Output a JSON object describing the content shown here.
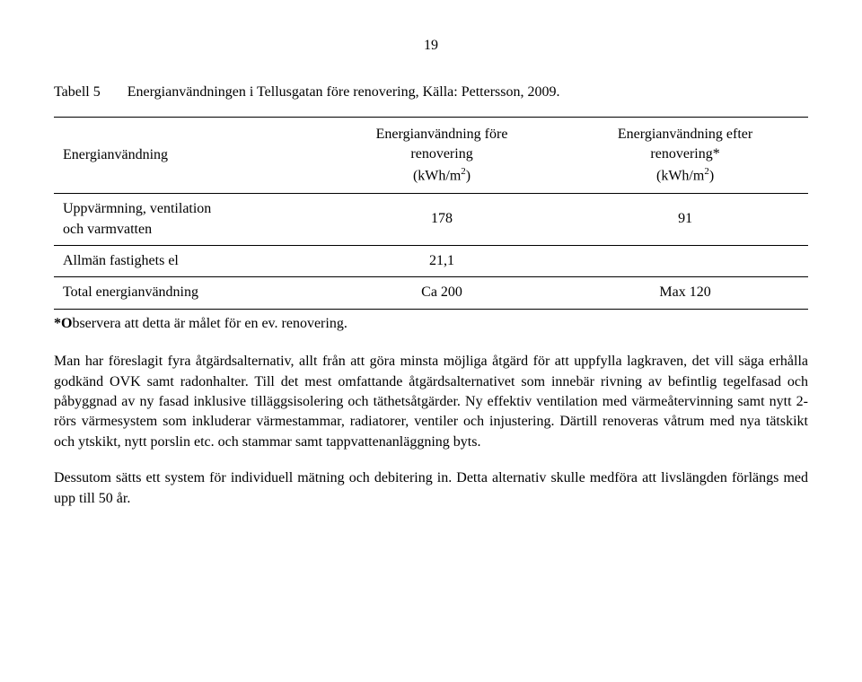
{
  "page_number": "19",
  "caption": {
    "label": "Tabell 5",
    "text": "Energianvändningen i Tellusgatan före renovering, Källa: Pettersson, 2009."
  },
  "table": {
    "columns": [
      {
        "header": "Energianvändning",
        "align": "left"
      },
      {
        "header_line1": "Energianvändning före",
        "header_line2": "renovering",
        "header_line3_prefix": "(kWh/m",
        "header_line3_sup": "2",
        "header_line3_suffix": ")",
        "align": "center"
      },
      {
        "header_line1": "Energianvändning efter",
        "header_line2": "renovering*",
        "header_line3_prefix": "(kWh/m",
        "header_line3_sup": "2",
        "header_line3_suffix": ")",
        "align": "center"
      }
    ],
    "rows": [
      {
        "label_line1": "Uppvärmning, ventilation",
        "label_line2": "och varmvatten",
        "col1": "178",
        "col2": "91"
      },
      {
        "label_line1": "Allmän fastighets el",
        "label_line2": "",
        "col1": "21,1",
        "col2": ""
      },
      {
        "label_line1": "Total energianvändning",
        "label_line2": "",
        "col1": "Ca 200",
        "col2": "Max 120"
      }
    ]
  },
  "footnote": {
    "bold_prefix": "*O",
    "rest": "bservera att detta är målet för en ev. renovering."
  },
  "paragraphs": [
    "Man har föreslagit fyra åtgärdsalternativ, allt från att göra minsta möjliga åtgärd för att uppfylla lagkraven, det vill säga erhålla godkänd OVK samt radonhalter. Till det mest omfattande åtgärdsalternativet som innebär rivning av befintlig tegelfasad och påbyggnad av ny fasad inklusive tilläggsisolering och täthetsåtgärder. Ny effektiv ventilation med värmeåtervinning samt nytt 2-rörs värmesystem som inkluderar värmestammar, radiatorer, ventiler och injustering. Därtill renoveras våtrum med nya tätskikt och ytskikt, nytt porslin etc. och stammar samt tappvattenanläggning byts.",
    "Dessutom sätts ett system för individuell mätning och debitering in. Detta alternativ skulle medföra att livslängden förlängs med upp till 50 år."
  ]
}
